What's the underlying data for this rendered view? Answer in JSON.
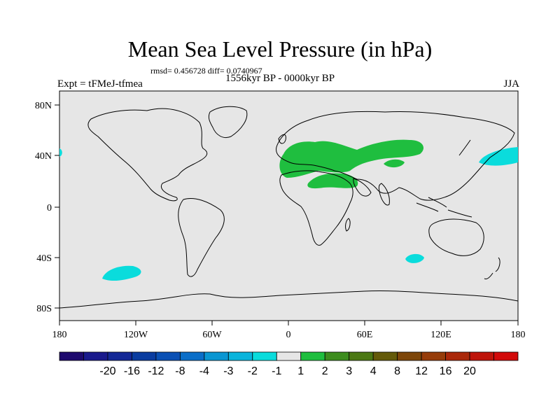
{
  "title": "Mean Sea Level Pressure (in hPa)",
  "stats": "rmsd= 0.456728  diff= 0.0740967",
  "experiment": "Expt = tFMeJ-tfmea",
  "period": "1556kyr BP - 0000kyr BP",
  "season": "JJA",
  "map": {
    "lon_ticks": [
      "180",
      "120W",
      "60W",
      "0",
      "60E",
      "120E",
      "180"
    ],
    "lat_ticks": [
      "80N",
      "40N",
      "0",
      "40S",
      "80S"
    ],
    "land_color": "#e6e6e6",
    "anomalies": [
      {
        "name": "eurasia-positive",
        "color": "#1fbe3f",
        "level": "1 to 2"
      },
      {
        "name": "north-africa-positive",
        "color": "#1fbe3f",
        "level": "1 to 2"
      },
      {
        "name": "central-asia-positive",
        "color": "#1fbe3f",
        "level": "1 to 2"
      },
      {
        "name": "north-pacific-negative",
        "color": "#0adcdc",
        "level": "-2 to -1"
      },
      {
        "name": "south-pacific-negative",
        "color": "#0adcdc",
        "level": "-2 to -1"
      },
      {
        "name": "indian-ocean-negative",
        "color": "#0adcdc",
        "level": "-2 to -1"
      },
      {
        "name": "atlantic-edge-negative",
        "color": "#0adcdc",
        "level": "-2 to -1"
      }
    ]
  },
  "colorbar": {
    "labels": [
      "-20",
      "-16",
      "-12",
      "-8",
      "-4",
      "-3",
      "-2",
      "-1",
      "1",
      "2",
      "3",
      "4",
      "8",
      "12",
      "16",
      "20"
    ],
    "colors": [
      "#1e0a6e",
      "#1a1a8c",
      "#142896",
      "#0a3ca0",
      "#0a50b4",
      "#0a6ec8",
      "#0a96d2",
      "#0ab4dc",
      "#0adcdc",
      "#e6e6e6",
      "#1fbe3f",
      "#3c8c1e",
      "#4b7814",
      "#645a0a",
      "#7d460a",
      "#963c0a",
      "#aa280a",
      "#be140a",
      "#d20a0a"
    ]
  }
}
